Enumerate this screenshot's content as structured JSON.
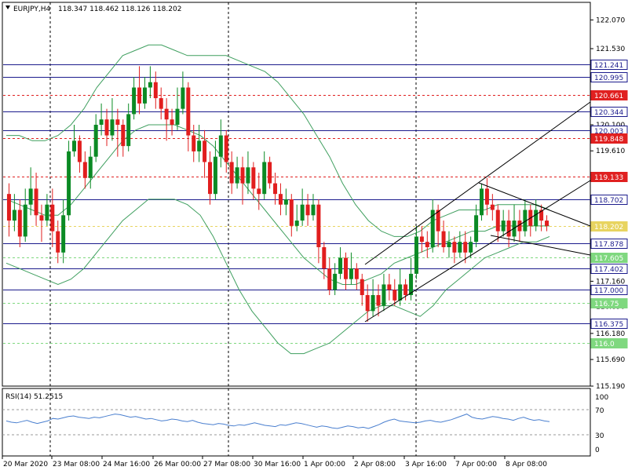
{
  "header": {
    "symbol": "EURJPY,H4",
    "ohlc": "118.347 118.462 118.126 118.202"
  },
  "rsi": {
    "label": "RSI(14) 51.2515",
    "levels": [
      "100",
      "70",
      "30",
      "0"
    ],
    "values": [
      52,
      50,
      49,
      51,
      53,
      50,
      48,
      50,
      52,
      56,
      55,
      57,
      59,
      60,
      58,
      57,
      56,
      58,
      57,
      59,
      61,
      63,
      62,
      60,
      58,
      59,
      57,
      55,
      56,
      54,
      52,
      53,
      55,
      54,
      52,
      51,
      53,
      50,
      48,
      47,
      46,
      48,
      47,
      45,
      44,
      46,
      45,
      47,
      49,
      47,
      45,
      44,
      43,
      46,
      45,
      47,
      49,
      48,
      46,
      44,
      42,
      44,
      43,
      41,
      40,
      42,
      44,
      43,
      41,
      42,
      40,
      43,
      46,
      50,
      53,
      55,
      52,
      51,
      50,
      49,
      50,
      52,
      53,
      51,
      50,
      52,
      54,
      57,
      60,
      63,
      58,
      56,
      55,
      57,
      59,
      58,
      56,
      55,
      53,
      56,
      58,
      55,
      53,
      54,
      52,
      51
    ]
  },
  "colors": {
    "bull": "#0b8a24",
    "bear": "#e11e1e",
    "band": "#3f9f5f",
    "blue_level": "#1b1b8c",
    "red_level": "#e02020",
    "green_level": "#7fd87f",
    "yellow_level": "#e8d460",
    "price_axis": "#000000"
  },
  "chart_data": {
    "type": "candlestick",
    "symbol": "EURJPY",
    "timeframe": "H4",
    "ylim": [
      115.19,
      122.4
    ],
    "price_ticks": [
      "122.070",
      "121.530",
      "120.610",
      "120.100",
      "119.610",
      "119.130",
      "117.160",
      "116.690",
      "116.180",
      "115.690",
      "115.190"
    ],
    "time_labels": [
      "20 Mar 2020",
      "23 Mar 08:00",
      "24 Mar 16:00",
      "26 Mar 00:00",
      "27 Mar 08:00",
      "30 Mar 16:00",
      "1 Apr 00:00",
      "2 Apr 08:00",
      "3 Apr 16:00",
      "7 Apr 00:00",
      "8 Apr 08:00"
    ],
    "levels": [
      {
        "value": 121.241,
        "label": "121.241",
        "kind": "blue"
      },
      {
        "value": 120.995,
        "label": "120.995",
        "kind": "blue"
      },
      {
        "value": 120.661,
        "label": "120.661",
        "kind": "red"
      },
      {
        "value": 120.344,
        "label": "120.344",
        "kind": "blue"
      },
      {
        "value": 120.003,
        "label": "120.003",
        "kind": "blue"
      },
      {
        "value": 119.848,
        "label": "119.848",
        "kind": "red"
      },
      {
        "value": 119.133,
        "label": "119.133",
        "kind": "red"
      },
      {
        "value": 118.702,
        "label": "118.702",
        "kind": "blue"
      },
      {
        "value": 118.2,
        "label": "118.202",
        "kind": "yellow"
      },
      {
        "value": 117.878,
        "label": "117.878",
        "kind": "blue"
      },
      {
        "value": 117.605,
        "label": "117.605",
        "kind": "green"
      },
      {
        "value": 117.402,
        "label": "117.402",
        "kind": "blue"
      },
      {
        "value": 117.0,
        "label": "117.000",
        "kind": "blue"
      },
      {
        "value": 116.75,
        "label": "116.75",
        "kind": "green"
      },
      {
        "value": 116.375,
        "label": "116.375",
        "kind": "blue"
      },
      {
        "value": 116.0,
        "label": "116.0",
        "kind": "green"
      }
    ],
    "candles": [
      [
        118.8,
        118.3,
        119.0,
        118.0
      ],
      [
        118.3,
        118.5,
        118.8,
        118.1
      ],
      [
        118.5,
        118.0,
        118.7,
        117.8
      ],
      [
        118.0,
        118.6,
        118.9,
        117.9
      ],
      [
        118.6,
        118.9,
        119.3,
        118.4
      ],
      [
        118.9,
        118.4,
        119.2,
        118.2
      ],
      [
        118.4,
        118.3,
        118.6,
        117.9
      ],
      [
        118.3,
        118.6,
        118.8,
        118.2
      ],
      [
        118.6,
        118.1,
        118.9,
        117.8
      ],
      [
        118.1,
        117.7,
        118.3,
        117.5
      ],
      [
        117.7,
        118.4,
        118.7,
        117.5
      ],
      [
        118.4,
        119.6,
        119.8,
        118.3
      ],
      [
        119.6,
        119.8,
        120.1,
        119.5
      ],
      [
        119.8,
        119.4,
        119.9,
        119.2
      ],
      [
        119.4,
        119.1,
        119.6,
        118.9
      ],
      [
        119.1,
        119.5,
        119.7,
        118.9
      ],
      [
        119.5,
        120.1,
        120.3,
        119.4
      ],
      [
        120.1,
        120.2,
        120.5,
        119.9
      ],
      [
        120.2,
        119.9,
        120.4,
        119.7
      ],
      [
        119.9,
        120.2,
        120.6,
        119.8
      ],
      [
        120.2,
        120.1,
        120.4,
        119.5
      ],
      [
        120.1,
        119.7,
        120.2,
        119.5
      ],
      [
        119.7,
        120.3,
        120.5,
        119.6
      ],
      [
        120.3,
        120.8,
        121.0,
        120.2
      ],
      [
        120.8,
        120.5,
        121.2,
        120.3
      ],
      [
        120.5,
        120.8,
        121.0,
        120.4
      ],
      [
        120.8,
        120.9,
        121.2,
        120.6
      ],
      [
        120.9,
        120.6,
        121.1,
        120.4
      ],
      [
        120.6,
        120.4,
        120.8,
        120.2
      ],
      [
        120.4,
        120.2,
        120.6,
        119.8
      ],
      [
        120.2,
        120.1,
        120.4,
        119.9
      ],
      [
        120.1,
        120.4,
        120.8,
        120.0
      ],
      [
        120.4,
        120.8,
        121.1,
        120.3
      ],
      [
        120.8,
        119.9,
        120.9,
        119.6
      ],
      [
        119.9,
        119.6,
        120.1,
        119.4
      ],
      [
        119.6,
        119.8,
        120.1,
        119.4
      ],
      [
        119.8,
        119.4,
        120.0,
        119.1
      ],
      [
        119.4,
        118.8,
        119.6,
        118.6
      ],
      [
        118.8,
        119.5,
        119.8,
        118.7
      ],
      [
        119.5,
        119.9,
        120.2,
        119.3
      ],
      [
        119.9,
        119.4,
        120.0,
        119.2
      ],
      [
        119.4,
        119.0,
        119.6,
        118.8
      ],
      [
        119.0,
        119.3,
        119.5,
        118.9
      ],
      [
        119.3,
        119.0,
        119.5,
        118.6
      ],
      [
        119.0,
        119.3,
        119.6,
        118.8
      ],
      [
        119.3,
        118.9,
        119.4,
        118.7
      ],
      [
        118.9,
        118.8,
        119.2,
        118.5
      ],
      [
        118.8,
        119.4,
        119.6,
        118.7
      ],
      [
        119.4,
        119.0,
        119.5,
        118.9
      ],
      [
        119.0,
        118.8,
        119.2,
        118.6
      ],
      [
        118.8,
        118.6,
        119.0,
        118.4
      ],
      [
        118.6,
        118.7,
        118.9,
        118.4
      ],
      [
        118.7,
        118.2,
        118.8,
        118.0
      ],
      [
        118.2,
        118.3,
        118.6,
        118.1
      ],
      [
        118.3,
        118.6,
        118.9,
        118.2
      ],
      [
        118.6,
        118.4,
        118.8,
        118.2
      ],
      [
        118.4,
        118.6,
        118.8,
        118.3
      ],
      [
        118.6,
        117.8,
        118.7,
        117.5
      ],
      [
        117.8,
        117.4,
        117.9,
        117.2
      ],
      [
        117.4,
        117.0,
        117.6,
        116.9
      ],
      [
        117.0,
        117.3,
        117.5,
        116.9
      ],
      [
        117.3,
        117.6,
        117.8,
        117.2
      ],
      [
        117.6,
        117.2,
        117.7,
        117.0
      ],
      [
        117.2,
        117.4,
        117.7,
        117.1
      ],
      [
        117.4,
        117.2,
        117.5,
        117.0
      ],
      [
        117.2,
        116.9,
        117.3,
        116.7
      ],
      [
        116.9,
        116.6,
        117.1,
        116.4
      ],
      [
        116.6,
        116.9,
        117.2,
        116.5
      ],
      [
        116.9,
        116.7,
        117.1,
        116.5
      ],
      [
        116.7,
        117.1,
        117.3,
        116.6
      ],
      [
        117.1,
        117.0,
        117.3,
        116.8
      ],
      [
        117.0,
        116.8,
        117.2,
        116.7
      ],
      [
        116.8,
        117.1,
        117.4,
        116.7
      ],
      [
        117.1,
        116.9,
        117.2,
        116.8
      ],
      [
        116.9,
        117.3,
        117.6,
        116.8
      ],
      [
        117.3,
        118.0,
        118.2,
        117.2
      ],
      [
        118.0,
        117.9,
        118.2,
        117.7
      ],
      [
        117.9,
        117.8,
        118.1,
        117.6
      ],
      [
        117.8,
        118.5,
        118.7,
        117.7
      ],
      [
        118.5,
        118.1,
        118.6,
        117.8
      ],
      [
        118.1,
        117.8,
        118.3,
        117.7
      ],
      [
        117.8,
        117.9,
        118.1,
        117.6
      ],
      [
        117.9,
        117.7,
        118.0,
        117.5
      ],
      [
        117.7,
        117.9,
        118.1,
        117.6
      ],
      [
        117.9,
        117.7,
        118.1,
        117.5
      ],
      [
        117.7,
        117.9,
        118.0,
        117.6
      ],
      [
        117.9,
        118.4,
        118.6,
        117.8
      ],
      [
        118.4,
        118.9,
        119.0,
        118.3
      ],
      [
        118.9,
        118.6,
        119.1,
        118.4
      ],
      [
        118.6,
        118.5,
        118.8,
        118.3
      ],
      [
        118.5,
        118.1,
        118.6,
        117.9
      ],
      [
        118.1,
        118.3,
        118.5,
        118.0
      ],
      [
        118.3,
        118.0,
        118.5,
        117.8
      ],
      [
        118.0,
        118.3,
        118.6,
        117.9
      ],
      [
        118.3,
        118.1,
        118.5,
        117.9
      ],
      [
        118.1,
        118.5,
        118.7,
        118.0
      ],
      [
        118.5,
        118.2,
        118.6,
        118.0
      ],
      [
        118.2,
        118.5,
        118.7,
        118.1
      ],
      [
        118.5,
        118.3,
        118.6,
        118.1
      ],
      [
        118.3,
        118.2,
        118.4,
        118.1
      ]
    ],
    "bollinger": {
      "upper": [
        119.9,
        119.9,
        119.8,
        119.8,
        119.9,
        120.1,
        120.4,
        120.8,
        121.1,
        121.4,
        121.5,
        121.6,
        121.6,
        121.5,
        121.4,
        121.4,
        121.4,
        121.4,
        121.3,
        121.2,
        121.1,
        120.9,
        120.6,
        120.3,
        119.9,
        119.5,
        119.0,
        118.6,
        118.3,
        118.1,
        118.0,
        118.0,
        118.1,
        118.3,
        118.4,
        118.5,
        118.5,
        118.5,
        118.6,
        118.6,
        118.6,
        118.6,
        118.5
      ],
      "middle": [
        118.7,
        118.6,
        118.5,
        118.4,
        118.4,
        118.6,
        118.9,
        119.2,
        119.5,
        119.8,
        120.0,
        120.1,
        120.1,
        120.1,
        120.0,
        119.9,
        119.7,
        119.4,
        119.1,
        118.8,
        118.5,
        118.2,
        117.9,
        117.6,
        117.4,
        117.2,
        117.1,
        117.1,
        117.2,
        117.3,
        117.5,
        117.6,
        117.7,
        117.8,
        117.9,
        118.0,
        118.1,
        118.1,
        118.2,
        118.2,
        118.2,
        118.2,
        118.2
      ],
      "lower": [
        117.5,
        117.4,
        117.3,
        117.2,
        117.1,
        117.2,
        117.4,
        117.7,
        118.0,
        118.3,
        118.5,
        118.7,
        118.7,
        118.7,
        118.6,
        118.4,
        118.0,
        117.5,
        117.0,
        116.6,
        116.3,
        116.0,
        115.8,
        115.8,
        115.9,
        116.0,
        116.2,
        116.4,
        116.6,
        116.7,
        116.7,
        116.6,
        116.5,
        116.7,
        117.0,
        117.2,
        117.4,
        117.6,
        117.7,
        117.8,
        117.9,
        117.9,
        118.0
      ]
    }
  }
}
